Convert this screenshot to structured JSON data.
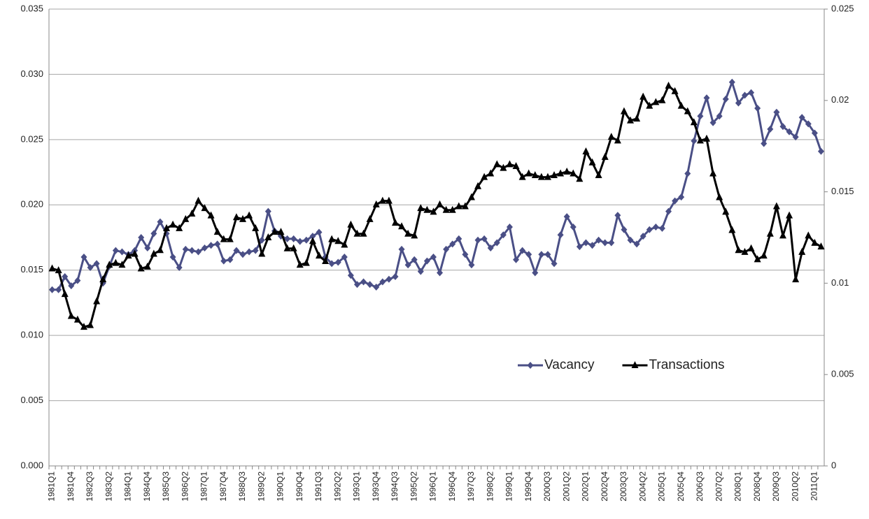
{
  "chart_data": {
    "type": "line",
    "categories": [
      "1981Q1",
      null,
      null,
      "1981Q4",
      null,
      null,
      "1982Q3",
      null,
      null,
      "1983Q2",
      null,
      null,
      "1984Q1",
      null,
      null,
      "1984Q4",
      null,
      null,
      "1985Q3",
      null,
      null,
      "1986Q2",
      null,
      null,
      "1987Q1",
      null,
      null,
      "1987Q4",
      null,
      null,
      "1988Q3",
      null,
      null,
      "1989Q2",
      null,
      null,
      "1990Q1",
      null,
      null,
      "1990Q4",
      null,
      null,
      "1991Q3",
      null,
      null,
      "1992Q2",
      null,
      null,
      "1993Q1",
      null,
      null,
      "1993Q4",
      null,
      null,
      "1994Q3",
      null,
      null,
      "1995Q2",
      null,
      null,
      "1996Q1",
      null,
      null,
      "1996Q4",
      null,
      null,
      "1997Q3",
      null,
      null,
      "1998Q2",
      null,
      null,
      "1999Q1",
      null,
      null,
      "1999Q4",
      null,
      null,
      "2000Q3",
      null,
      null,
      "2001Q2",
      null,
      null,
      "2002Q1",
      null,
      null,
      "2002Q4",
      null,
      null,
      "2003Q3",
      null,
      null,
      "2004Q2",
      null,
      null,
      "2005Q1",
      null,
      null,
      "2005Q4",
      null,
      null,
      "2006Q3",
      null,
      null,
      "2007Q2",
      null,
      null,
      "2008Q1",
      null,
      null,
      "2008Q4",
      null,
      null,
      "2009Q3",
      null,
      null,
      "2010Q2",
      null,
      null,
      "2011Q1",
      null
    ],
    "series": [
      {
        "name": "Vacancy",
        "color": "#4a4f86",
        "marker": "diamond",
        "values": [
          0.0135,
          0.0135,
          0.0145,
          0.0138,
          0.0142,
          0.016,
          0.0152,
          0.0155,
          0.014,
          0.0153,
          0.0165,
          0.0164,
          0.0162,
          0.0165,
          0.0175,
          0.0167,
          0.0178,
          0.0187,
          0.0178,
          0.016,
          0.0152,
          0.0166,
          0.0165,
          0.0164,
          0.0167,
          0.0169,
          0.017,
          0.0157,
          0.0158,
          0.0165,
          0.0162,
          0.0164,
          0.0165,
          0.0173,
          0.0195,
          0.018,
          0.0176,
          0.0174,
          0.0174,
          0.0172,
          0.0173,
          0.0176,
          0.0179,
          0.016,
          0.0155,
          0.0156,
          0.016,
          0.0146,
          0.0139,
          0.0141,
          0.0139,
          0.0137,
          0.0141,
          0.0143,
          0.0145,
          0.0166,
          0.0154,
          0.0158,
          0.0149,
          0.0157,
          0.016,
          0.0148,
          0.0166,
          0.017,
          0.0174,
          0.0162,
          0.0154,
          0.0173,
          0.0174,
          0.0167,
          0.0171,
          0.0177,
          0.0183,
          0.0158,
          0.0165,
          0.0162,
          0.0148,
          0.0162,
          0.0162,
          0.0155,
          0.0177,
          0.0191,
          0.0183,
          0.0168,
          0.0171,
          0.0169,
          0.0173,
          0.0171,
          0.0171,
          0.0192,
          0.0181,
          0.0173,
          0.017,
          0.0176,
          0.0181,
          0.0183,
          0.0182,
          0.0195,
          0.0203,
          0.0206,
          0.0224,
          0.0249,
          0.0268,
          0.0282,
          0.0263,
          0.0268,
          0.0281,
          0.0294,
          0.0278,
          0.0284,
          0.0286,
          0.0274,
          0.0247,
          0.0258,
          0.0271,
          0.026,
          0.0256,
          0.0252,
          0.0267,
          0.0262,
          0.0255,
          0.0241
        ]
      },
      {
        "name": "Transactions",
        "color": "#000000",
        "marker": "triangle",
        "axis": "y2",
        "values": [
          0.0108,
          0.0107,
          0.0094,
          0.0082,
          0.008,
          0.0076,
          0.0077,
          0.009,
          0.0102,
          0.011,
          0.0111,
          0.011,
          0.0115,
          0.0116,
          0.0108,
          0.0109,
          0.0116,
          0.0118,
          0.013,
          0.0132,
          0.013,
          0.0135,
          0.0138,
          0.0145,
          0.0141,
          0.0137,
          0.0128,
          0.0124,
          0.0124,
          0.0136,
          0.0135,
          0.0137,
          0.013,
          0.0116,
          0.0125,
          0.0128,
          0.0128,
          0.0119,
          0.0119,
          0.011,
          0.0111,
          0.0123,
          0.0115,
          0.0112,
          0.0124,
          0.0123,
          0.0121,
          0.0132,
          0.0127,
          0.0127,
          0.0135,
          0.0143,
          0.0145,
          0.0145,
          0.0133,
          0.0131,
          0.0127,
          0.0126,
          0.0141,
          0.014,
          0.0139,
          0.0143,
          0.014,
          0.014,
          0.0142,
          0.0142,
          0.0147,
          0.0153,
          0.0158,
          0.016,
          0.0165,
          0.0163,
          0.0165,
          0.0164,
          0.0158,
          0.016,
          0.0159,
          0.0158,
          0.0158,
          0.0159,
          0.016,
          0.0161,
          0.016,
          0.0157,
          0.0172,
          0.0166,
          0.0159,
          0.0169,
          0.018,
          0.0178,
          0.0194,
          0.0189,
          0.019,
          0.0202,
          0.0197,
          0.0199,
          0.02,
          0.0208,
          0.0205,
          0.0197,
          0.0194,
          0.0188,
          0.0178,
          0.0179,
          0.016,
          0.0147,
          0.0139,
          0.0129,
          0.0118,
          0.0117,
          0.0119,
          0.0113,
          0.0115,
          0.0127,
          0.0142,
          0.0126,
          0.0137,
          0.0102,
          0.0117,
          0.0126,
          0.0122,
          0.012
        ]
      }
    ],
    "ylim": [
      0,
      0.035
    ],
    "yticks": [
      {
        "value": 0,
        "label": "0.000"
      },
      {
        "value": 0.005,
        "label": "0.005"
      },
      {
        "value": 0.01,
        "label": "0.010"
      },
      {
        "value": 0.015,
        "label": "0.015"
      },
      {
        "value": 0.02,
        "label": "0.020"
      },
      {
        "value": 0.025,
        "label": "0.025"
      },
      {
        "value": 0.03,
        "label": "0.030"
      },
      {
        "value": 0.035,
        "label": "0.035"
      }
    ],
    "y2lim": [
      0,
      0.025
    ],
    "y2ticks": [
      0,
      0.005,
      0.01,
      0.015,
      0.02,
      0.025
    ],
    "grid": true,
    "legend": "lower right"
  }
}
